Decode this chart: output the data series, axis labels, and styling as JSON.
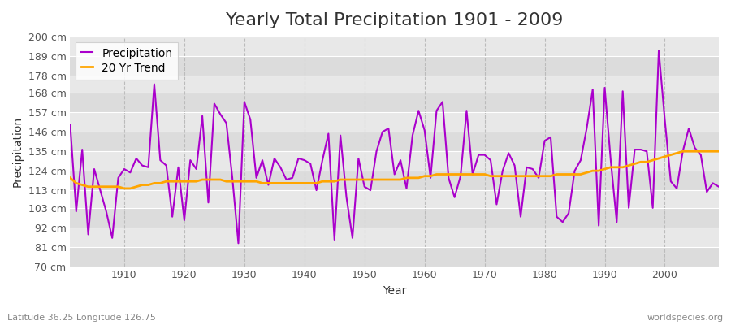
{
  "title": "Yearly Total Precipitation 1901 - 2009",
  "xlabel": "Year",
  "ylabel": "Precipitation",
  "subtitle": "Latitude 36.25 Longitude 126.75",
  "watermark": "worldspecies.org",
  "years": [
    1901,
    1902,
    1903,
    1904,
    1905,
    1906,
    1907,
    1908,
    1909,
    1910,
    1911,
    1912,
    1913,
    1914,
    1915,
    1916,
    1917,
    1918,
    1919,
    1920,
    1921,
    1922,
    1923,
    1924,
    1925,
    1926,
    1927,
    1928,
    1929,
    1930,
    1931,
    1932,
    1933,
    1934,
    1935,
    1936,
    1937,
    1938,
    1939,
    1940,
    1941,
    1942,
    1943,
    1944,
    1945,
    1946,
    1947,
    1948,
    1949,
    1950,
    1951,
    1952,
    1953,
    1954,
    1955,
    1956,
    1957,
    1958,
    1959,
    1960,
    1961,
    1962,
    1963,
    1964,
    1965,
    1966,
    1967,
    1968,
    1969,
    1970,
    1971,
    1972,
    1973,
    1974,
    1975,
    1976,
    1977,
    1978,
    1979,
    1980,
    1981,
    1982,
    1983,
    1984,
    1985,
    1986,
    1987,
    1988,
    1989,
    1990,
    1991,
    1992,
    1993,
    1994,
    1995,
    1996,
    1997,
    1998,
    1999,
    2000,
    2001,
    2002,
    2003,
    2004,
    2005,
    2006,
    2007,
    2008,
    2009
  ],
  "precipitation": [
    150,
    101,
    136,
    88,
    125,
    113,
    101,
    86,
    120,
    125,
    123,
    131,
    127,
    126,
    173,
    130,
    127,
    98,
    126,
    96,
    130,
    125,
    155,
    106,
    162,
    156,
    151,
    120,
    83,
    163,
    153,
    120,
    130,
    116,
    131,
    126,
    119,
    120,
    131,
    130,
    128,
    113,
    130,
    145,
    85,
    144,
    109,
    86,
    131,
    115,
    113,
    135,
    146,
    148,
    122,
    130,
    114,
    144,
    158,
    147,
    120,
    158,
    163,
    120,
    109,
    121,
    158,
    122,
    133,
    133,
    130,
    105,
    124,
    134,
    127,
    98,
    126,
    125,
    120,
    141,
    143,
    98,
    95,
    100,
    124,
    130,
    148,
    170,
    93,
    171,
    130,
    95,
    169,
    103,
    136,
    136,
    135,
    103,
    192,
    153,
    118,
    114,
    135,
    148,
    137,
    133,
    112,
    117,
    115
  ],
  "trend": [
    120,
    117,
    116,
    115,
    115,
    115,
    115,
    115,
    115,
    114,
    114,
    115,
    116,
    116,
    117,
    117,
    118,
    118,
    118,
    118,
    118,
    118,
    119,
    119,
    119,
    119,
    118,
    118,
    118,
    118,
    118,
    118,
    117,
    117,
    117,
    117,
    117,
    117,
    117,
    117,
    117,
    117,
    118,
    118,
    118,
    119,
    119,
    119,
    119,
    119,
    119,
    119,
    119,
    119,
    119,
    119,
    120,
    120,
    120,
    121,
    121,
    122,
    122,
    122,
    122,
    122,
    122,
    122,
    122,
    122,
    121,
    121,
    121,
    121,
    121,
    121,
    121,
    121,
    121,
    121,
    121,
    122,
    122,
    122,
    122,
    122,
    123,
    124,
    124,
    125,
    126,
    126,
    126,
    127,
    128,
    129,
    129,
    130,
    131,
    132,
    133,
    134,
    135,
    135,
    135,
    135,
    135,
    135,
    135
  ],
  "precip_color": "#AA00CC",
  "trend_color": "#FFA500",
  "bg_color": "#FFFFFF",
  "plot_bg_color": "#E8E8E8",
  "band_color_1": "#DCDCDC",
  "band_color_2": "#E8E8E8",
  "grid_color": "#FFFFFF",
  "vgrid_color": "#BBBBBB",
  "ylim": [
    70,
    200
  ],
  "ytick_values": [
    70,
    81,
    92,
    103,
    113,
    124,
    135,
    146,
    157,
    168,
    178,
    189,
    200
  ],
  "ytick_labels": [
    "70 cm",
    "81 cm",
    "92 cm",
    "103 cm",
    "113 cm",
    "124 cm",
    "135 cm",
    "146 cm",
    "157 cm",
    "168 cm",
    "178 cm",
    "189 cm",
    "200 cm"
  ],
  "title_fontsize": 16,
  "label_fontsize": 10,
  "tick_fontsize": 9
}
